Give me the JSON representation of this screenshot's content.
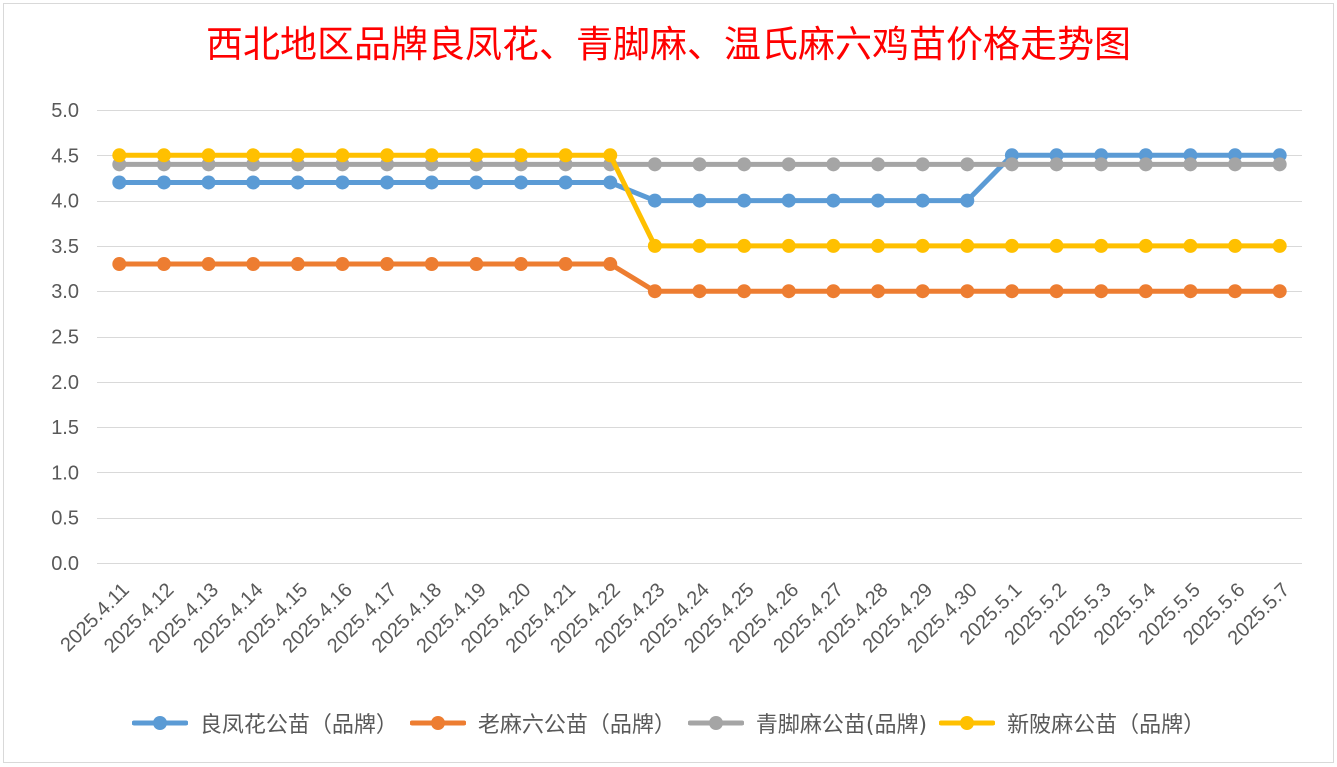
{
  "chart_data": {
    "type": "line",
    "title": "西北地区品牌良凤花、青脚麻、温氏麻六鸡苗价格走势图",
    "title_color": "#FF0000",
    "categories": [
      "2025.4.11",
      "2025.4.12",
      "2025.4.13",
      "2025.4.14",
      "2025.4.15",
      "2025.4.16",
      "2025.4.17",
      "2025.4.18",
      "2025.4.19",
      "2025.4.20",
      "2025.4.21",
      "2025.4.22",
      "2025.4.23",
      "2025.4.24",
      "2025.4.25",
      "2025.4.26",
      "2025.4.27",
      "2025.4.28",
      "2025.4.29",
      "2025.4.30",
      "2025.5.1",
      "2025.5.2",
      "2025.5.3",
      "2025.5.4",
      "2025.5.5",
      "2025.5.6",
      "2025.5.7"
    ],
    "ylim": [
      0,
      5
    ],
    "yticks": [
      0,
      0.5,
      1,
      1.5,
      2,
      2.5,
      3,
      3.5,
      4,
      4.5,
      5
    ],
    "ytick_labels": [
      "0.0",
      "0.5",
      "1.0",
      "1.5",
      "2.0",
      "2.5",
      "3.0",
      "3.5",
      "4.0",
      "4.5",
      "5.0"
    ],
    "grid": "horizontal",
    "legend_position": "bottom",
    "series": [
      {
        "name": "良凤花公苗（品牌）",
        "color": "#5B9BD5",
        "values": [
          4.2,
          4.2,
          4.2,
          4.2,
          4.2,
          4.2,
          4.2,
          4.2,
          4.2,
          4.2,
          4.2,
          4.2,
          4.0,
          4.0,
          4.0,
          4.0,
          4.0,
          4.0,
          4.0,
          4.0,
          4.5,
          4.5,
          4.5,
          4.5,
          4.5,
          4.5,
          4.5
        ]
      },
      {
        "name": "老麻六公苗（品牌）",
        "color": "#ED7D31",
        "values": [
          3.3,
          3.3,
          3.3,
          3.3,
          3.3,
          3.3,
          3.3,
          3.3,
          3.3,
          3.3,
          3.3,
          3.3,
          3.0,
          3.0,
          3.0,
          3.0,
          3.0,
          3.0,
          3.0,
          3.0,
          3.0,
          3.0,
          3.0,
          3.0,
          3.0,
          3.0,
          3.0
        ]
      },
      {
        "name": "青脚麻公苗(品牌)",
        "color": "#A5A5A5",
        "values": [
          4.4,
          4.4,
          4.4,
          4.4,
          4.4,
          4.4,
          4.4,
          4.4,
          4.4,
          4.4,
          4.4,
          4.4,
          4.4,
          4.4,
          4.4,
          4.4,
          4.4,
          4.4,
          4.4,
          4.4,
          4.4,
          4.4,
          4.4,
          4.4,
          4.4,
          4.4,
          4.4
        ]
      },
      {
        "name": "新陂麻公苗（品牌）",
        "color": "#FFC000",
        "values": [
          4.5,
          4.5,
          4.5,
          4.5,
          4.5,
          4.5,
          4.5,
          4.5,
          4.5,
          4.5,
          4.5,
          4.5,
          3.5,
          3.5,
          3.5,
          3.5,
          3.5,
          3.5,
          3.5,
          3.5,
          3.5,
          3.5,
          3.5,
          3.5,
          3.5,
          3.5,
          3.5
        ]
      }
    ]
  }
}
